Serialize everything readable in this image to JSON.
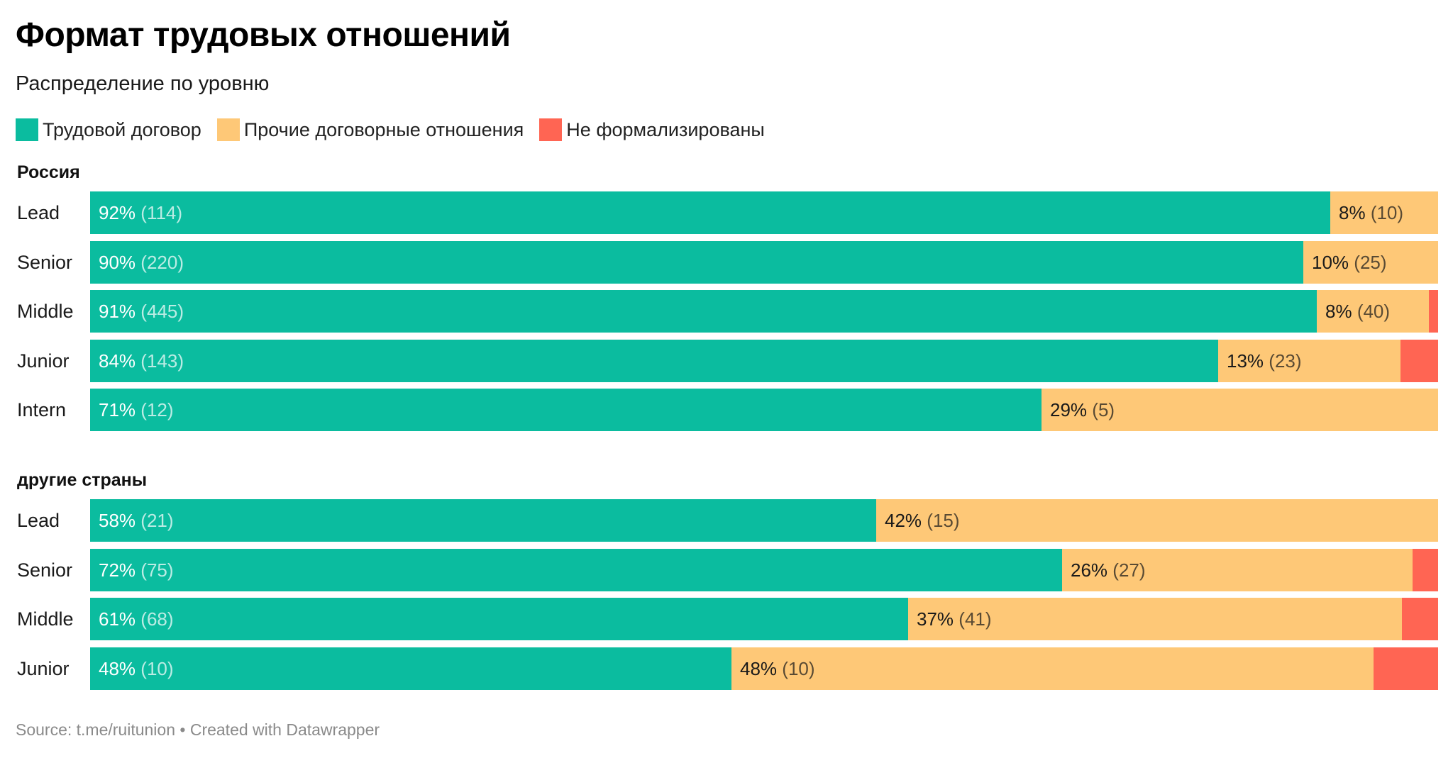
{
  "title": "Формат трудовых отношений",
  "subtitle": "Распределение по уровню",
  "legend": [
    {
      "label": "Трудовой договор",
      "color": "#0bbc9f"
    },
    {
      "label": "Прочие договорные отношения",
      "color": "#fec877"
    },
    {
      "label": "Не формализированы",
      "color": "#ff6553"
    }
  ],
  "colors": {
    "labor": "#0bbc9f",
    "other": "#fec877",
    "informal": "#ff6553"
  },
  "footer": "Source: t.me/ruitunion • Created with Datawrapper",
  "chart_data": {
    "type": "bar",
    "orientation": "horizontal",
    "stacked": true,
    "normalized": true,
    "series_names": [
      "Трудовой договор",
      "Прочие договорные отношения",
      "Не формализированы"
    ],
    "groups": [
      {
        "name": "Россия",
        "rows": [
          {
            "category": "Lead",
            "values": [
              92,
              8,
              0
            ],
            "label1": "92%",
            "count1": "(114)",
            "label2": "8%",
            "count2": "(10)"
          },
          {
            "category": "Senior",
            "values": [
              90,
              10,
              0
            ],
            "label1": "90%",
            "count1": "(220)",
            "label2": "10%",
            "count2": "(25)"
          },
          {
            "category": "Middle",
            "values": [
              91,
              8.3,
              0.7
            ],
            "label1": "91%",
            "count1": "(445)",
            "label2": "8%",
            "count2": "(40)"
          },
          {
            "category": "Junior",
            "values": [
              83.7,
              13.5,
              2.8
            ],
            "label1": "84%",
            "count1": "(143)",
            "label2": "13%",
            "count2": "(23)"
          },
          {
            "category": "Intern",
            "values": [
              70.6,
              29.4,
              0
            ],
            "label1": "71%",
            "count1": "(12)",
            "label2": "29%",
            "count2": "(5)"
          }
        ]
      },
      {
        "name": "другие страны",
        "rows": [
          {
            "category": "Lead",
            "values": [
              58.3,
              41.7,
              0
            ],
            "label1": "58%",
            "count1": "(21)",
            "label2": "42%",
            "count2": "(15)"
          },
          {
            "category": "Senior",
            "values": [
              72.1,
              26,
              1.9
            ],
            "label1": "72%",
            "count1": "(75)",
            "label2": "26%",
            "count2": "(27)"
          },
          {
            "category": "Middle",
            "values": [
              60.7,
              36.6,
              2.7
            ],
            "label1": "61%",
            "count1": "(68)",
            "label2": "37%",
            "count2": "(41)"
          },
          {
            "category": "Junior",
            "values": [
              47.6,
              47.6,
              4.8
            ],
            "label1": "48%",
            "count1": "(10)",
            "label2": "48%",
            "count2": "(10)"
          }
        ]
      }
    ]
  }
}
